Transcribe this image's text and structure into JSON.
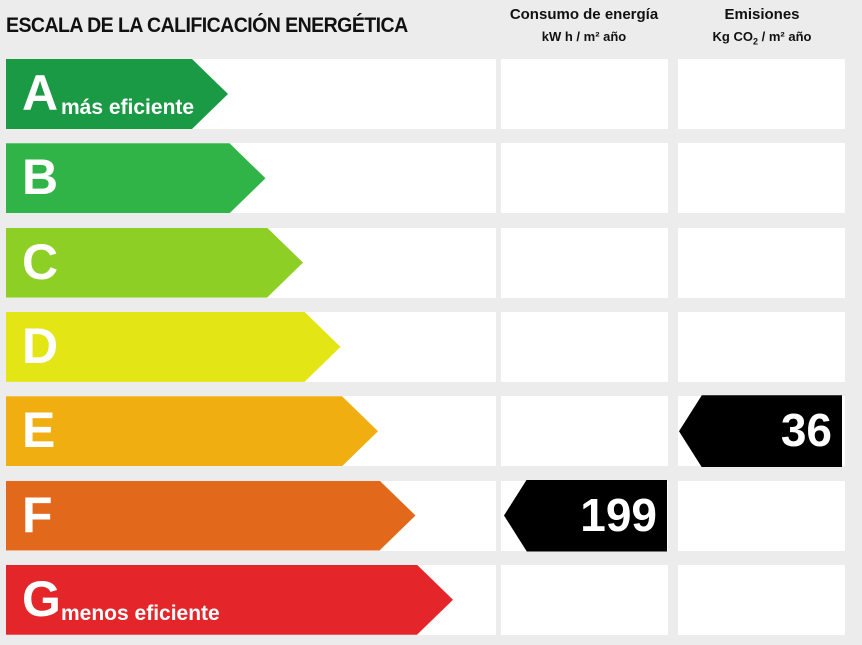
{
  "title": "ESCALA DE LA CALIFICACIÓN ENERGÉTICA",
  "columns": {
    "consumo": {
      "label": "Consumo de energía",
      "unit": "kW h / m² año"
    },
    "emisiones": {
      "label": "Emisiones",
      "unit_prefix": "Kg CO",
      "unit_sub": "2",
      "unit_suffix": " / m² año"
    }
  },
  "chart_data": {
    "type": "bar",
    "categories": [
      "A",
      "B",
      "C",
      "D",
      "E",
      "F",
      "G"
    ],
    "scale_labels": {
      "A": "más eficiente",
      "G": "menos eficiente"
    },
    "colors": [
      "#1b9a45",
      "#31b447",
      "#8ecf26",
      "#e3e514",
      "#f0ae10",
      "#e2681c",
      "#e4262b"
    ],
    "consumo": {
      "value": 199,
      "class": "F"
    },
    "emisiones": {
      "value": 36,
      "class": "E"
    }
  }
}
